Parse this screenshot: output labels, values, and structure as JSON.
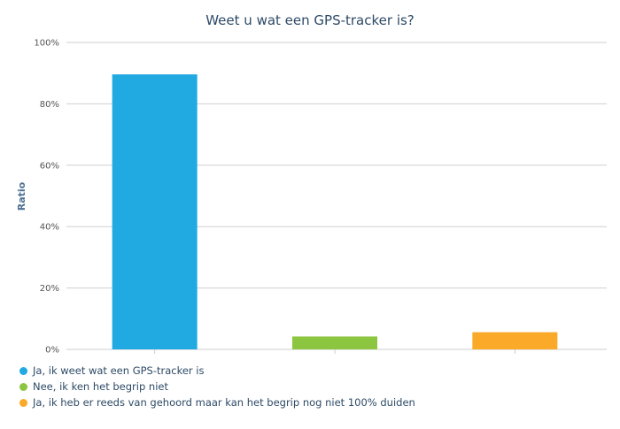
{
  "chart_data": {
    "type": "bar",
    "title": "Weet u wat een GPS-tracker is?",
    "xlabel": "",
    "ylabel": "Ratio",
    "ylim": [
      0,
      100
    ],
    "yticks": [
      "0%",
      "20%",
      "40%",
      "60%",
      "80%",
      "100%"
    ],
    "grid": true,
    "legend_position": "bottom-left",
    "series": [
      {
        "name": "Ja, ik weet wat een GPS-tracker is",
        "value": 89.6,
        "color": "#21a9e1"
      },
      {
        "name": "Nee, ik ken het begrip niet",
        "value": 4.2,
        "color": "#8cc540"
      },
      {
        "name": "Ja, ik heb er reeds van gehoord maar kan het begrip nog niet 100% duiden",
        "value": 5.6,
        "color": "#faa928"
      }
    ]
  }
}
